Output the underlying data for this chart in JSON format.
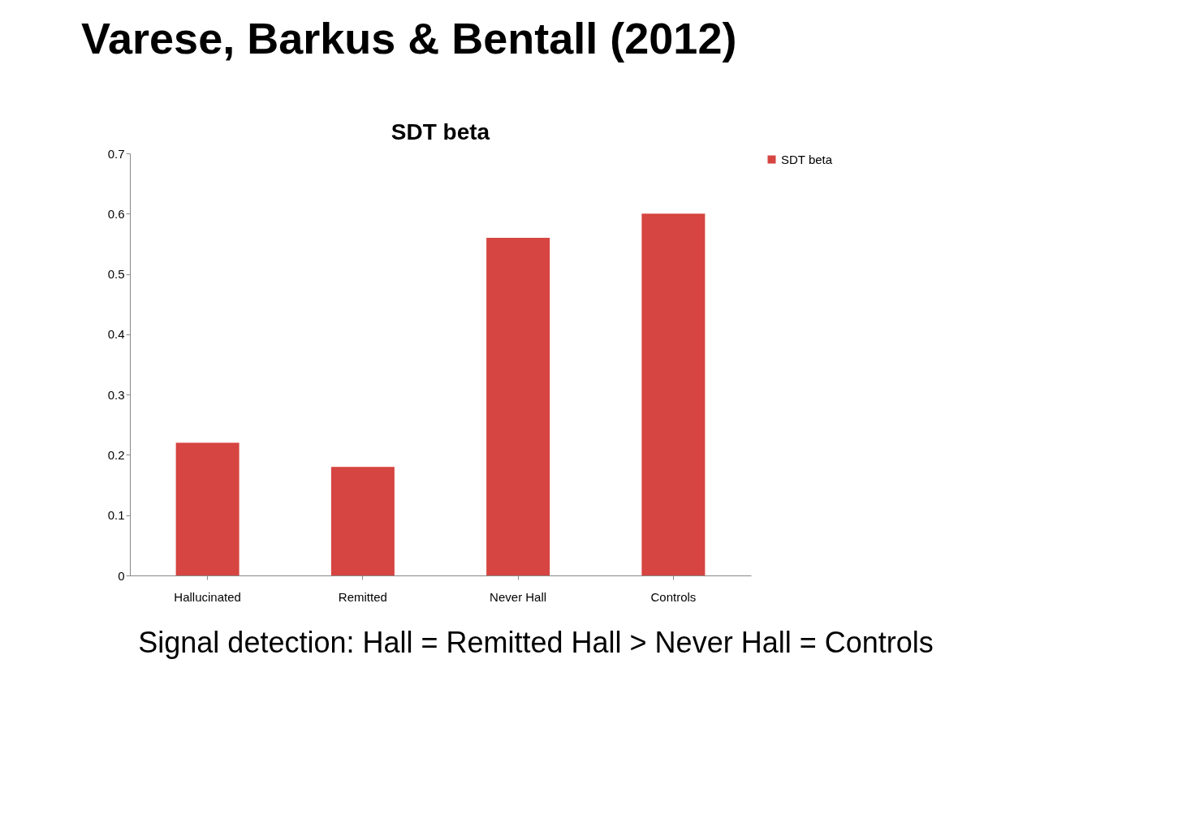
{
  "chart_data": {
    "type": "bar",
    "title": "SDT beta",
    "categories": [
      "Hallucinated",
      "Remitted",
      "Never Hall",
      "Controls"
    ],
    "series": [
      {
        "name": "SDT beta",
        "color": "#d64541",
        "values": [
          0.22,
          0.18,
          0.56,
          0.6
        ]
      }
    ],
    "ylim": [
      0,
      0.7
    ],
    "yticks": [
      0,
      0.1,
      0.2,
      0.3,
      0.4,
      0.5,
      0.6,
      0.7
    ],
    "grid": false,
    "legend": "right",
    "annotations": [
      "Varese, Barkus & Bentall (2012)",
      "Signal detection: Hall = Remitted Hall > Never Hall = Controls"
    ]
  }
}
